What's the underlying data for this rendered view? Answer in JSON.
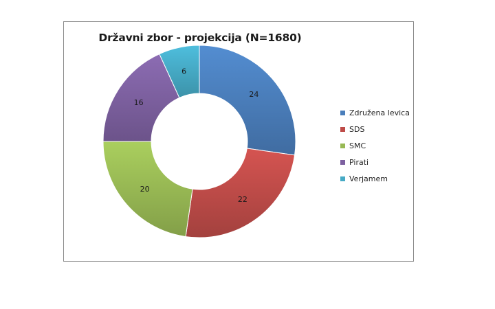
{
  "chart_data": {
    "type": "pie",
    "variant": "doughnut",
    "title": "Državni zbor - projekcija (N=1680)",
    "categories": [
      "Združena levica",
      "SDS",
      "SMC",
      "Pirati",
      "Verjamem"
    ],
    "values": [
      24,
      22,
      20,
      16,
      6
    ],
    "data_labels": [
      "24",
      "22",
      "20",
      "16",
      "6"
    ],
    "colors": [
      "#4a7ebb",
      "#be4b48",
      "#98b954",
      "#7d60a0",
      "#46aac5"
    ],
    "legend_placement": "right",
    "start_angle_deg": 0,
    "direction": "clockwise"
  }
}
